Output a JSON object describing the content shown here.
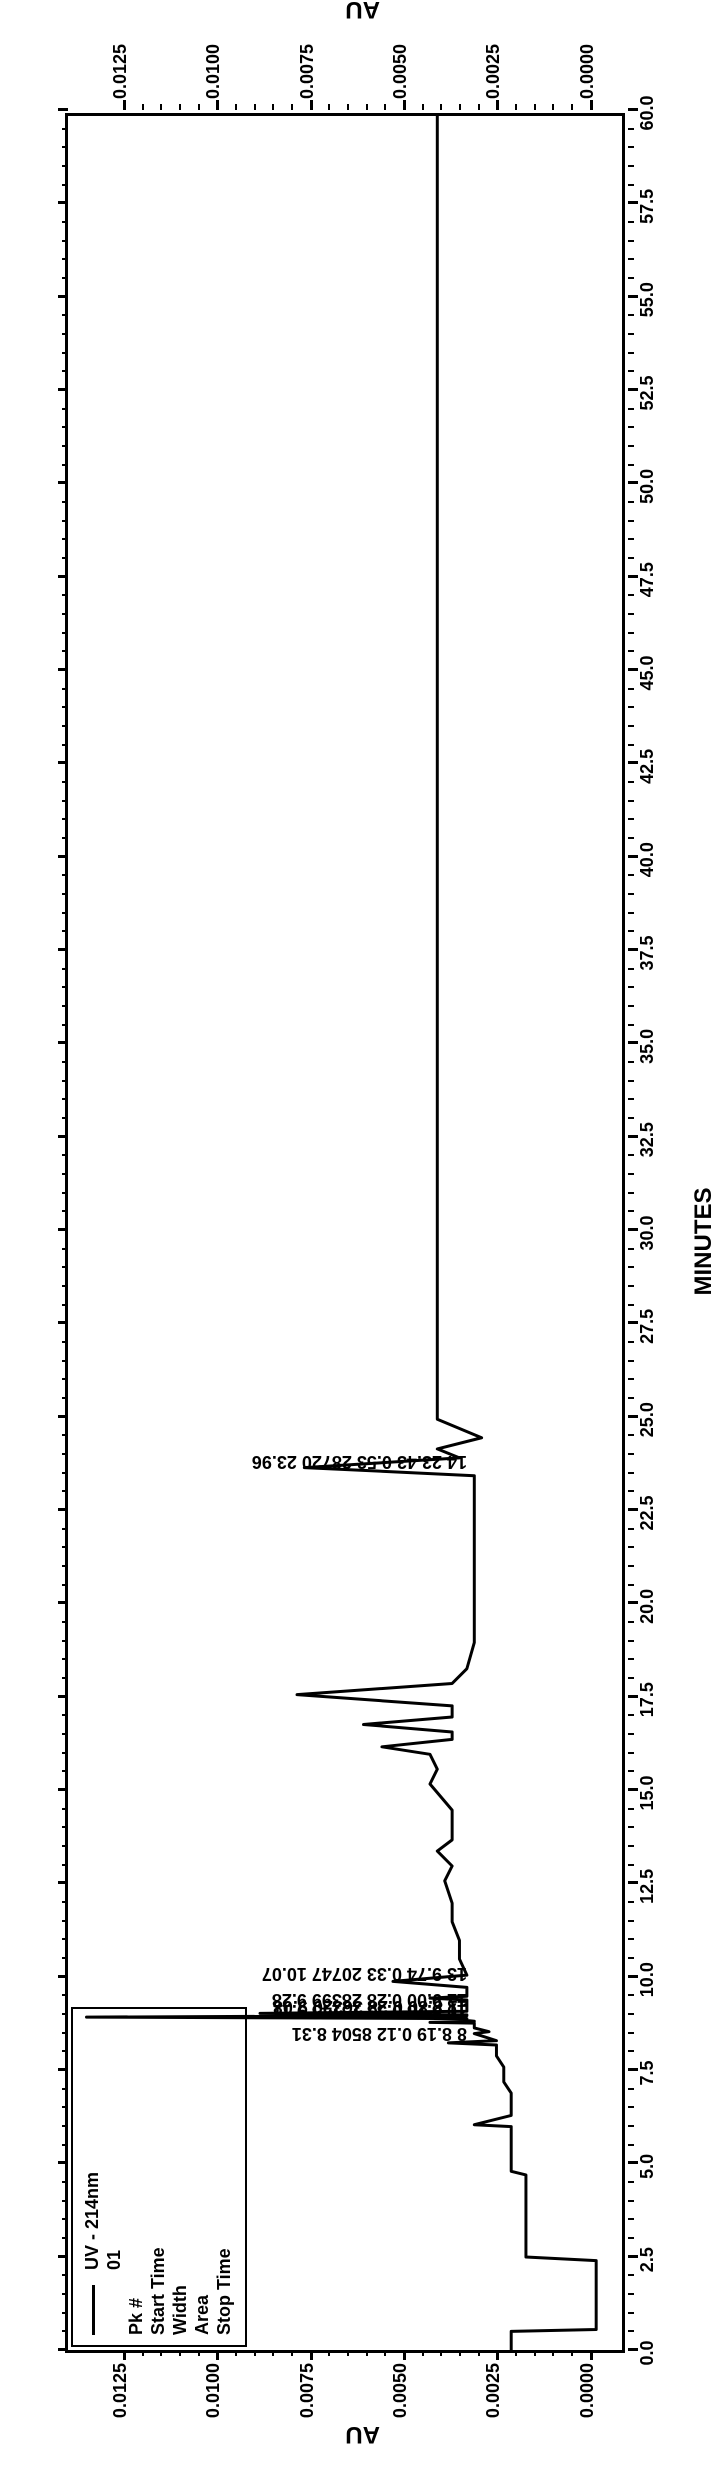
{
  "chart": {
    "type": "line",
    "background_color": "#ffffff",
    "line_color": "#000000",
    "border_color": "#000000",
    "border_width": 3,
    "line_width": 3,
    "font_family": "Arial",
    "x_axis": {
      "label": "MINUTES",
      "label_fontsize": 24,
      "xlim": [
        0,
        60
      ],
      "ticks": [
        0.0,
        2.5,
        5.0,
        7.5,
        10.0,
        12.5,
        15.0,
        17.5,
        20.0,
        22.5,
        25.0,
        27.5,
        30.0,
        32.5,
        35.0,
        37.5,
        40.0,
        42.5,
        45.0,
        47.5,
        50.0,
        52.5,
        55.0,
        57.5,
        60.0
      ],
      "tick_labels": [
        "0.0",
        "2.5",
        "5.0",
        "7.5",
        "10.0",
        "12.5",
        "15.0",
        "17.5",
        "20.0",
        "22.5",
        "25.0",
        "27.5",
        "30.0",
        "32.5",
        "35.0",
        "37.5",
        "40.0",
        "42.5",
        "45.0",
        "47.5",
        "50.0",
        "52.5",
        "55.0",
        "57.5",
        "60.0"
      ],
      "tick_fontsize": 18,
      "minor_ticks": 4
    },
    "y_axis": {
      "label_left": "AU",
      "label_right": "AU",
      "label_fontsize": 24,
      "ylim": [
        -0.001,
        0.014
      ],
      "ticks": [
        0.0,
        0.0025,
        0.005,
        0.0075,
        0.01,
        0.0125
      ],
      "tick_labels": [
        "0.0000",
        "0.0025",
        "0.0050",
        "0.0075",
        "0.0100",
        "0.0125"
      ],
      "tick_fontsize": 18,
      "minor_ticks": 4
    },
    "legend": {
      "series_label": "UV - 214nm",
      "sample_label": "01",
      "fields": [
        "Pk #",
        "Start Time",
        "Width",
        "Area",
        "Stop Time"
      ]
    },
    "peak_annotations": [
      {
        "x_min": 8.1,
        "text": "8 8.19 0.12 8504 8.31"
      },
      {
        "x_min": 8.7,
        "text": "10 8.78 0.33 15145 9.11"
      },
      {
        "x_min": 8.8,
        "text": "11 8.80 0.28 36320 9.08"
      },
      {
        "x_min": 9.0,
        "text": "12 9.00 0.28 28399 9.28"
      },
      {
        "x_min": 9.7,
        "text": "13 9.74 0.33 20747 10.07"
      },
      {
        "x_min": 23.4,
        "text": "14 23.43 0.53 28720 23.96"
      }
    ],
    "trace": [
      [
        0.0,
        0.002
      ],
      [
        0.5,
        0.002
      ],
      [
        0.55,
        -0.0003
      ],
      [
        2.4,
        -0.0003
      ],
      [
        2.5,
        0.0016
      ],
      [
        4.7,
        0.0016
      ],
      [
        4.8,
        0.002
      ],
      [
        6.0,
        0.002
      ],
      [
        6.05,
        0.003
      ],
      [
        6.3,
        0.002
      ],
      [
        6.9,
        0.002
      ],
      [
        7.2,
        0.0022
      ],
      [
        7.6,
        0.0022
      ],
      [
        7.9,
        0.0024
      ],
      [
        8.1,
        0.0024
      ],
      [
        8.19,
        0.0024
      ],
      [
        8.25,
        0.0037
      ],
      [
        8.31,
        0.0024
      ],
      [
        8.5,
        0.003
      ],
      [
        8.55,
        0.0026
      ],
      [
        8.65,
        0.003
      ],
      [
        8.78,
        0.003
      ],
      [
        8.8,
        0.0042
      ],
      [
        8.83,
        0.003
      ],
      [
        8.85,
        0.0032
      ],
      [
        8.9,
        0.0032
      ],
      [
        8.94,
        0.0135
      ],
      [
        8.98,
        0.0032
      ],
      [
        9.0,
        0.0032
      ],
      [
        9.04,
        0.0088
      ],
      [
        9.1,
        0.0032
      ],
      [
        9.2,
        0.0032
      ],
      [
        9.4,
        0.0032
      ],
      [
        9.45,
        0.0042
      ],
      [
        9.5,
        0.0032
      ],
      [
        9.74,
        0.0032
      ],
      [
        9.9,
        0.0052
      ],
      [
        10.07,
        0.0032
      ],
      [
        10.5,
        0.0034
      ],
      [
        11.0,
        0.0034
      ],
      [
        11.5,
        0.0036
      ],
      [
        12.0,
        0.0036
      ],
      [
        12.6,
        0.0038
      ],
      [
        13.0,
        0.0036
      ],
      [
        13.4,
        0.004
      ],
      [
        13.7,
        0.0036
      ],
      [
        14.5,
        0.0036
      ],
      [
        15.2,
        0.0042
      ],
      [
        15.6,
        0.004
      ],
      [
        16.0,
        0.0042
      ],
      [
        16.2,
        0.0055
      ],
      [
        16.4,
        0.0036
      ],
      [
        16.6,
        0.0036
      ],
      [
        16.8,
        0.006
      ],
      [
        17.0,
        0.0036
      ],
      [
        17.3,
        0.0036
      ],
      [
        17.6,
        0.0078
      ],
      [
        17.9,
        0.0036
      ],
      [
        18.3,
        0.0032
      ],
      [
        19.0,
        0.003
      ],
      [
        20.0,
        0.003
      ],
      [
        21.0,
        0.003
      ],
      [
        22.0,
        0.003
      ],
      [
        22.8,
        0.003
      ],
      [
        23.43,
        0.003
      ],
      [
        23.48,
        0.003
      ],
      [
        23.7,
        0.0076
      ],
      [
        23.96,
        0.0034
      ],
      [
        24.2,
        0.004
      ],
      [
        24.5,
        0.0028
      ],
      [
        25.0,
        0.004
      ],
      [
        25.6,
        0.004
      ],
      [
        60.0,
        0.004
      ]
    ]
  }
}
